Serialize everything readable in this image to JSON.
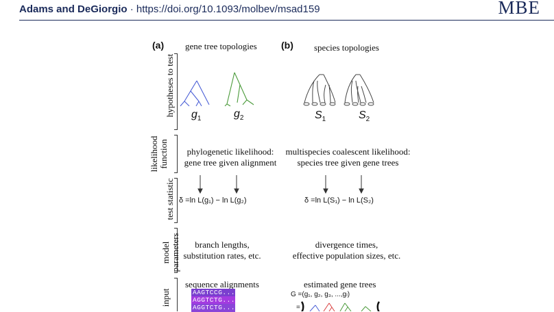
{
  "header": {
    "authors": "Adams and DeGiorgio",
    "separator": " · ",
    "doi": "https://doi.org/10.1093/molbev/msad159",
    "journal": "MBE"
  },
  "figure": {
    "panel_a": {
      "label": "(a)",
      "title": "gene tree topologies",
      "tree1": "g",
      "tree1_sub": "1",
      "tree2": "g",
      "tree2_sub": "2",
      "likelihood_line1": "phylogenetic likelihood:",
      "likelihood_line2": "gene tree given alignment",
      "statistic": "δ =ln L(g₁) − ln L(g₂)",
      "params_line1": "branch lengths,",
      "params_line2": "substitution rates, etc.",
      "input": "sequence alignments",
      "sequences": [
        "AAGTCCG...",
        "AGGTCTG...",
        "AGGTCTG..."
      ]
    },
    "panel_b": {
      "label": "(b)",
      "title": "species topologies",
      "tree1": "S",
      "tree1_sub": "1",
      "tree2": "S",
      "tree2_sub": "2",
      "likelihood_line1": "multispecies coalescent likelihood:",
      "likelihood_line2": "species tree given gene trees",
      "statistic": "δ =ln L(S₁) − ln L(S₂)",
      "params_line1": "divergence times,",
      "params_line2": "effective population sizes, etc.",
      "input": "estimated gene trees",
      "gene_set": "G =(g₁, g₂, g₃, ...,gₗ)"
    },
    "rows": {
      "hypotheses": "hypotheses to test",
      "likelihood_line1": "likelihood",
      "likelihood_line2": "function",
      "statistic": "test statistic",
      "params_line1": "model",
      "params_line2": "parameters",
      "input": "input"
    },
    "colors": {
      "tree_blue": "#4a5fd6",
      "tree_green": "#4a9a3a",
      "tree_red": "#d94040",
      "seq_purple": "#8a45d8",
      "highlight": "#ffd34a"
    }
  }
}
